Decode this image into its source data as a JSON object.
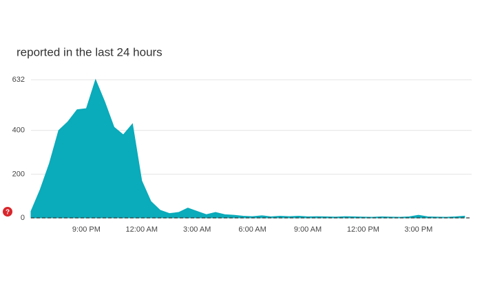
{
  "chart_data": {
    "type": "area",
    "title": "reported in the last 24 hours",
    "categories": [
      null,
      null,
      null,
      null,
      null,
      null,
      "9:00 PM",
      null,
      null,
      null,
      null,
      null,
      "12:00 AM",
      null,
      null,
      null,
      null,
      null,
      "3:00 AM",
      null,
      null,
      null,
      null,
      null,
      "6:00 AM",
      null,
      null,
      null,
      null,
      null,
      "9:00 AM",
      null,
      null,
      null,
      null,
      null,
      "12:00 PM",
      null,
      null,
      null,
      null,
      null,
      "3:00 PM",
      null,
      null,
      null,
      null,
      null
    ],
    "values": [
      30,
      130,
      250,
      400,
      440,
      495,
      500,
      632,
      530,
      415,
      380,
      430,
      170,
      75,
      35,
      20,
      25,
      45,
      30,
      15,
      25,
      15,
      12,
      8,
      6,
      10,
      5,
      8,
      6,
      8,
      5,
      6,
      5,
      4,
      6,
      5,
      4,
      3,
      5,
      4,
      3,
      5,
      12,
      5,
      4,
      3,
      5,
      8
    ],
    "color": "#0aabba",
    "ylim": [
      0,
      632
    ],
    "yticks": [
      0,
      200,
      400,
      632
    ],
    "grid": true
  }
}
